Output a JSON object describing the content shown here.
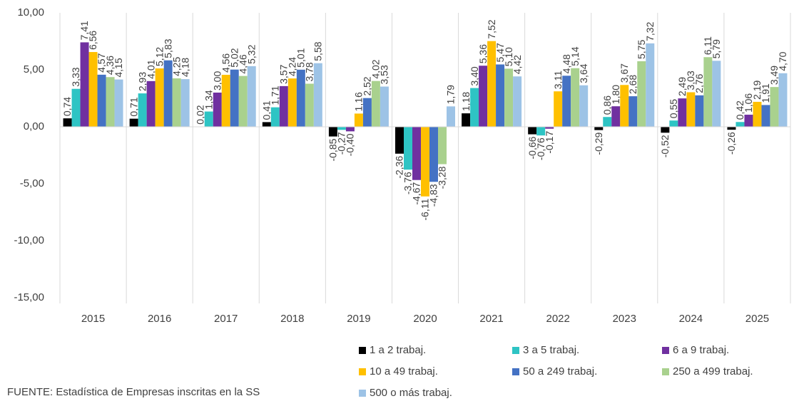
{
  "chart_data": {
    "type": "bar",
    "categories": [
      "2015",
      "2016",
      "2017",
      "2018",
      "2019",
      "2020",
      "2021",
      "2022",
      "2023",
      "2024",
      "2025"
    ],
    "series": [
      {
        "name": "1 a 2 trabaj.",
        "color": "#000000",
        "values": [
          0.74,
          0.71,
          0.02,
          0.41,
          -0.85,
          -2.36,
          1.18,
          -0.66,
          -0.29,
          -0.52,
          -0.26
        ],
        "value_labels": [
          "0,74",
          "0,71",
          "0,02",
          "0,41",
          "-0,85",
          "-2,36",
          "1,18",
          "-0,66",
          "-0,29",
          "-0,52",
          "-0,26"
        ]
      },
      {
        "name": "3 a 5 trabaj.",
        "color": "#2ec4c4",
        "values": [
          3.33,
          2.93,
          1.34,
          1.71,
          -0.27,
          -3.76,
          3.4,
          -0.76,
          0.86,
          0.55,
          0.42
        ],
        "value_labels": [
          "3,33",
          "2,93",
          "1,34",
          "1,71",
          "-0,27",
          "-3,76",
          "3,40",
          "-0,76",
          "0,86",
          "0,55",
          "0,42"
        ]
      },
      {
        "name": "6 a 9 trabaj.",
        "color": "#7030a0",
        "values": [
          7.41,
          4.01,
          3.0,
          3.57,
          -0.4,
          -4.67,
          5.36,
          -0.17,
          1.8,
          2.49,
          1.06
        ],
        "value_labels": [
          "7,41",
          "4,01",
          "3,00",
          "3,57",
          "-0,40",
          "-4,67",
          "5,36",
          "-0,17",
          "1,80",
          "2,49",
          "1,06"
        ]
      },
      {
        "name": "10 a 49 trabaj.",
        "color": "#ffc000",
        "values": [
          6.56,
          5.12,
          4.56,
          4.24,
          1.16,
          -6.11,
          7.52,
          3.11,
          3.67,
          3.03,
          2.19
        ],
        "value_labels": [
          "6,56",
          "5,12",
          "4,56",
          "4,24",
          "1,16",
          "-6,11",
          "7,52",
          "3,11",
          "3,67",
          "3,03",
          "2,19"
        ]
      },
      {
        "name": "50 a 249 trabaj.",
        "color": "#4472c4",
        "values": [
          4.57,
          5.83,
          5.02,
          5.01,
          2.52,
          -4.83,
          5.47,
          4.48,
          2.68,
          2.76,
          1.91
        ],
        "value_labels": [
          "4,57",
          "5,83",
          "5,02",
          "5,01",
          "2,52",
          "-4,83",
          "5,47",
          "4,48",
          "2,68",
          "2,76",
          "1,91"
        ]
      },
      {
        "name": "250 a 499 trabaj.",
        "color": "#a9d18e",
        "values": [
          4.36,
          4.25,
          4.46,
          3.78,
          4.02,
          -3.28,
          5.1,
          5.14,
          5.75,
          6.11,
          3.49
        ],
        "value_labels": [
          "4,36",
          "4,25",
          "4,46",
          "3,78",
          "4,02",
          "-3,28",
          "5,10",
          "5,14",
          "5,75",
          "6,11",
          "3,49"
        ]
      },
      {
        "name": "500 o más trabaj.",
        "color": "#9dc3e6",
        "values": [
          4.15,
          4.18,
          5.32,
          5.58,
          3.53,
          1.79,
          4.42,
          3.64,
          7.32,
          5.79,
          4.7
        ],
        "value_labels": [
          "4,15",
          "4,18",
          "5,32",
          "5,58",
          "3,53",
          "1,79",
          "4,42",
          "3,64",
          "7,32",
          "5,79",
          "4,70"
        ]
      }
    ],
    "ylim": [
      -15,
      10
    ],
    "yticks": [
      {
        "value": -15,
        "label": "-15,00"
      },
      {
        "value": -10,
        "label": "-10,00"
      },
      {
        "value": -5,
        "label": "-5,00"
      },
      {
        "value": 0,
        "label": "0,00"
      },
      {
        "value": 5,
        "label": "5,00"
      },
      {
        "value": 10,
        "label": "10,00"
      }
    ],
    "source": "FUENTE: Estadística de Empresas inscritas en la SS"
  }
}
